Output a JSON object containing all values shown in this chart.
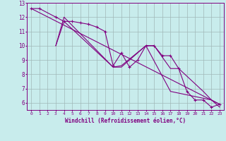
{
  "xlabel": "Windchill (Refroidissement éolien,°C)",
  "bg_color": "#c8ecec",
  "line_color": "#800080",
  "grid_color": "#a0b8b8",
  "series1_x": [
    0,
    1,
    3,
    4,
    5,
    6,
    7,
    8,
    9,
    10,
    11,
    12,
    13,
    14,
    15,
    16,
    17,
    18,
    19,
    20,
    21,
    22,
    23
  ],
  "series1_y": [
    12.6,
    12.6,
    12.0,
    11.7,
    11.7,
    11.6,
    11.5,
    11.3,
    11.0,
    8.6,
    9.5,
    8.5,
    9.0,
    10.0,
    10.0,
    9.3,
    9.3,
    8.4,
    6.8,
    6.2,
    6.2,
    5.7,
    5.9
  ],
  "series2_x": [
    3,
    4,
    10,
    11,
    14,
    15,
    17,
    18,
    21,
    22,
    23
  ],
  "series2_y": [
    10.0,
    11.7,
    8.5,
    8.5,
    10.0,
    10.0,
    8.4,
    8.4,
    6.8,
    6.2,
    5.9
  ],
  "series3_x": [
    0,
    23
  ],
  "series3_y": [
    12.6,
    5.9
  ],
  "series4_x": [
    3,
    4,
    10,
    11,
    14,
    17,
    22,
    23
  ],
  "series4_y": [
    10.0,
    12.0,
    8.5,
    8.6,
    10.0,
    6.8,
    6.2,
    5.7
  ],
  "xlim": [
    -0.5,
    23.5
  ],
  "ylim": [
    5.5,
    13.0
  ],
  "yticks": [
    6,
    7,
    8,
    9,
    10,
    11,
    12,
    13
  ],
  "xticks": [
    0,
    1,
    2,
    3,
    4,
    5,
    6,
    7,
    8,
    9,
    10,
    11,
    12,
    13,
    14,
    15,
    16,
    17,
    18,
    19,
    20,
    21,
    22,
    23
  ]
}
